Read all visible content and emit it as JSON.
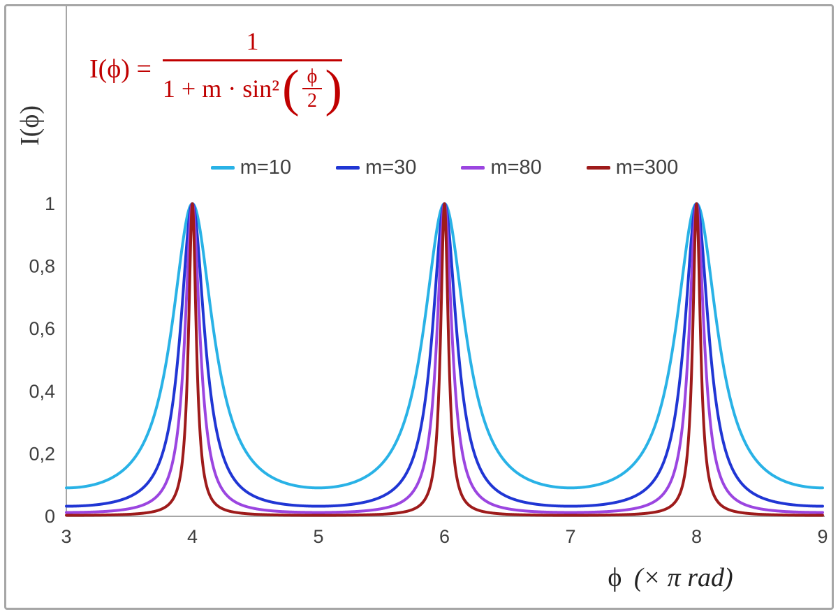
{
  "chart_data": {
    "type": "line",
    "title": "",
    "function": "I(phi) = 1 / (1 + m * sin^2(phi/2))",
    "ylabel": "I(ϕ)",
    "xlabel_phi": "ϕ",
    "xlabel_units": "(× π rad)",
    "x_units": "multiples of pi radians",
    "x_range": [
      3,
      9
    ],
    "y_range": [
      0,
      1
    ],
    "x_tick_values": [
      3,
      4,
      5,
      6,
      7,
      8,
      9
    ],
    "x_tick_labels": [
      "3",
      "4",
      "5",
      "6",
      "7",
      "8",
      "9"
    ],
    "y_tick_values": [
      0,
      0.2,
      0.4,
      0.6,
      0.8,
      1
    ],
    "y_tick_labels": [
      "0",
      "0,2",
      "0,4",
      "0,6",
      "0,8",
      "1"
    ],
    "grid": false,
    "legend_position": "top-center",
    "series": [
      {
        "name": "m=10",
        "m": 10,
        "color": "#29b2e6"
      },
      {
        "name": "m=30",
        "m": 30,
        "color": "#2036d4"
      },
      {
        "name": "m=80",
        "m": 80,
        "color": "#9b45e0"
      },
      {
        "name": "m=300",
        "m": 300,
        "color": "#9e1b1b"
      }
    ],
    "peaks_at_x": [
      4,
      6,
      8
    ],
    "peak_value": 1
  },
  "formula": {
    "lhs": "I(ϕ) =",
    "numerator": "1",
    "denominator_prefix": "1 + m · sin²",
    "open_paren": "(",
    "inner_numerator": "ϕ",
    "inner_denominator": "2",
    "close_paren": ")",
    "color": "#c00000"
  },
  "axes": {
    "line_color": "#a6a6a6",
    "tick_label_color": "#3f3f3f",
    "frame_color": "#a6a6a6"
  }
}
